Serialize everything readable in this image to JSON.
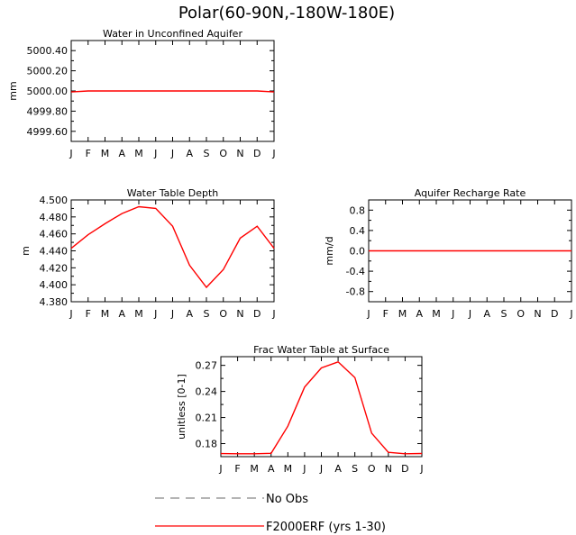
{
  "figure": {
    "title": "Polar(60-90N,-180W-180E)"
  },
  "chart_data": [
    {
      "type": "line",
      "title": "Water in Unconfined Aquifer",
      "xlabel": "",
      "ylabel": "mm",
      "categories": [
        "J",
        "F",
        "M",
        "A",
        "M",
        "J",
        "J",
        "A",
        "S",
        "O",
        "N",
        "D",
        "J"
      ],
      "yticks": [
        4999.6,
        4999.8,
        5000.0,
        5000.2,
        5000.4
      ],
      "ytick_labels": [
        "4999.60",
        "4999.80",
        "5000.00",
        "5000.20",
        "5000.40"
      ],
      "ylim": [
        4999.5,
        5000.5
      ],
      "grid": false,
      "series": [
        {
          "name": "F2000ERF (yrs 1-30)",
          "color": "#ff0000",
          "values": [
            4999.99,
            5000.0,
            5000.0,
            5000.0,
            5000.0,
            5000.0,
            5000.0,
            5000.0,
            5000.0,
            5000.0,
            5000.0,
            5000.0,
            4999.99
          ]
        }
      ]
    },
    {
      "type": "line",
      "title": "Water Table Depth",
      "xlabel": "",
      "ylabel": "m",
      "categories": [
        "J",
        "F",
        "M",
        "A",
        "M",
        "J",
        "J",
        "A",
        "S",
        "O",
        "N",
        "D",
        "J"
      ],
      "yticks": [
        4.38,
        4.4,
        4.42,
        4.44,
        4.46,
        4.48,
        4.5
      ],
      "ytick_labels": [
        "4.380",
        "4.400",
        "4.420",
        "4.440",
        "4.460",
        "4.480",
        "4.500"
      ],
      "ylim": [
        4.38,
        4.5
      ],
      "grid": false,
      "series": [
        {
          "name": "F2000ERF (yrs 1-30)",
          "color": "#ff0000",
          "values": [
            4.443,
            4.459,
            4.472,
            4.484,
            4.492,
            4.49,
            4.469,
            4.423,
            4.397,
            4.418,
            4.455,
            4.469,
            4.443
          ]
        }
      ]
    },
    {
      "type": "line",
      "title": "Aquifer Recharge Rate",
      "xlabel": "",
      "ylabel": "mm/d",
      "categories": [
        "J",
        "F",
        "M",
        "A",
        "M",
        "J",
        "J",
        "A",
        "S",
        "O",
        "N",
        "D",
        "J"
      ],
      "yticks": [
        -0.8,
        -0.4,
        0.0,
        0.4,
        0.8
      ],
      "ytick_labels": [
        "-0.8",
        "-0.4",
        "0.0",
        "0.4",
        "0.8"
      ],
      "ylim": [
        -1.0,
        1.0
      ],
      "grid": false,
      "series": [
        {
          "name": "F2000ERF (yrs 1-30)",
          "color": "#ff0000",
          "values": [
            0.0,
            0.0,
            0.0,
            0.0,
            0.0,
            0.0,
            0.0,
            0.0,
            0.0,
            0.0,
            0.0,
            0.0,
            0.0
          ]
        }
      ]
    },
    {
      "type": "line",
      "title": "Frac Water Table at Surface",
      "xlabel": "",
      "ylabel": "unitless [0-1]",
      "categories": [
        "J",
        "F",
        "M",
        "A",
        "M",
        "J",
        "J",
        "A",
        "S",
        "O",
        "N",
        "D",
        "J"
      ],
      "yticks": [
        0.18,
        0.21,
        0.24,
        0.27
      ],
      "ytick_labels": [
        "0.18",
        "0.21",
        "0.24",
        "0.27"
      ],
      "ylim": [
        0.165,
        0.28
      ],
      "grid": false,
      "series": [
        {
          "name": "F2000ERF (yrs 1-30)",
          "color": "#ff0000",
          "values": [
            0.1685,
            0.1683,
            0.1683,
            0.1688,
            0.2,
            0.245,
            0.267,
            0.274,
            0.256,
            0.192,
            0.17,
            0.1683,
            0.1686
          ]
        }
      ]
    }
  ],
  "legend": {
    "placement": "bottom-center",
    "items": [
      {
        "label": "No Obs",
        "style": "dashed",
        "color": "#888888"
      },
      {
        "label": "F2000ERF (yrs 1-30)",
        "style": "solid",
        "color": "#ff0000"
      }
    ]
  }
}
